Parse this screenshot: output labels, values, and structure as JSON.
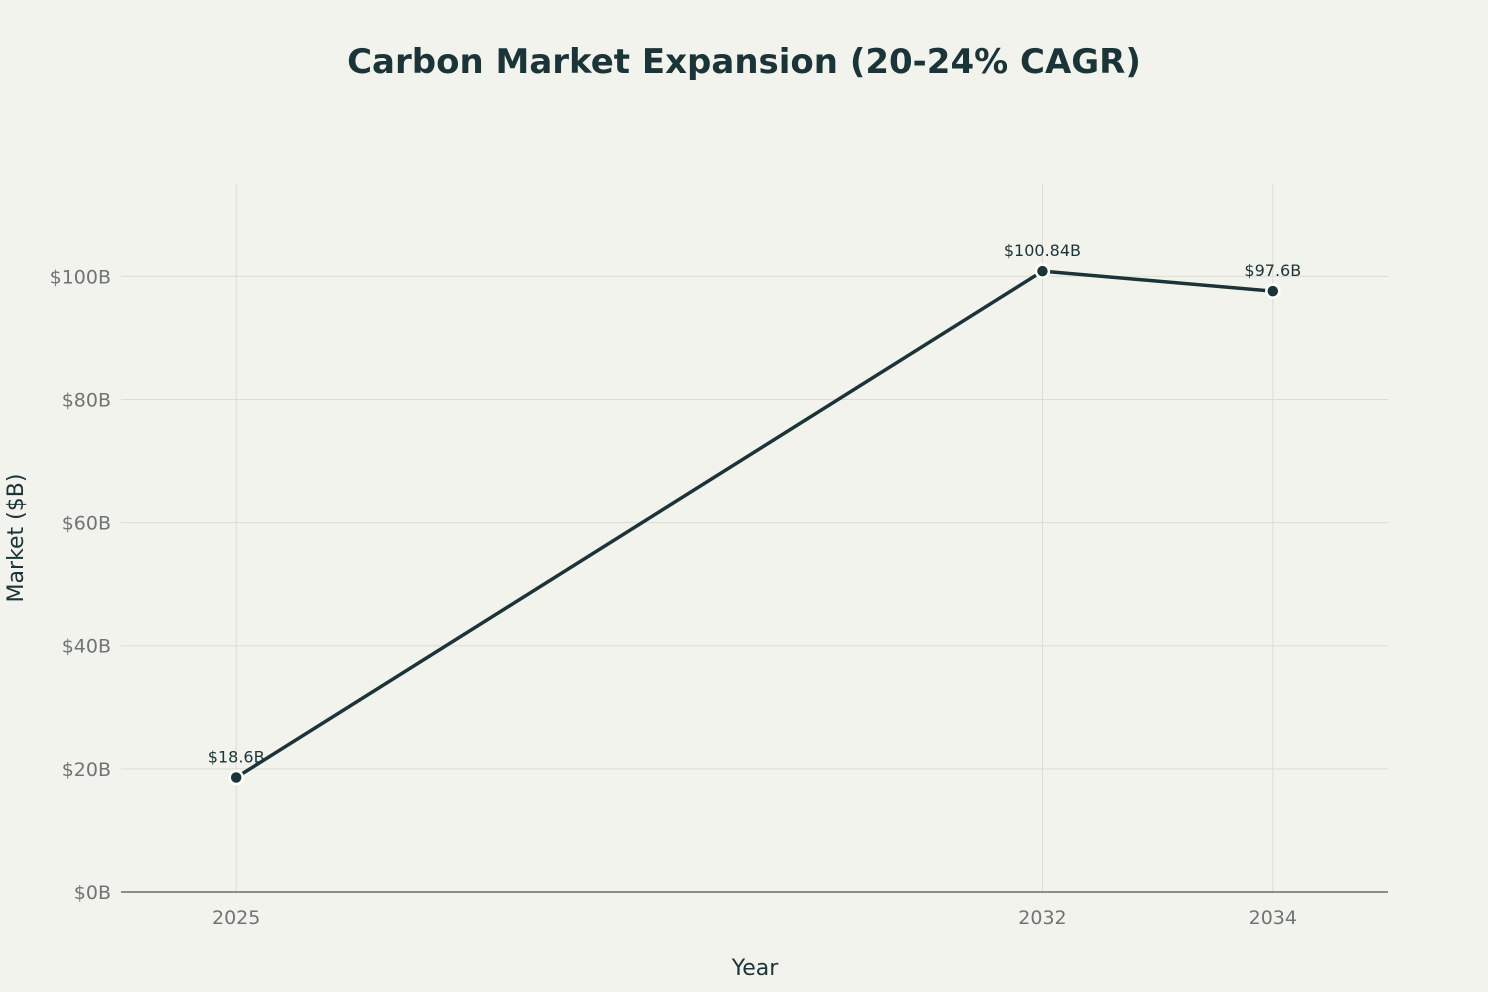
{
  "chart_data": {
    "type": "line",
    "title": "Carbon Market Expansion (20-24% CAGR)",
    "xlabel": "Year",
    "ylabel": "Market ($B)",
    "x": [
      2025,
      2032,
      2034
    ],
    "x_tick_labels": [
      "2025",
      "2032",
      "2034"
    ],
    "xlim": [
      2024,
      2035
    ],
    "ylim": [
      0,
      115
    ],
    "y_ticks": [
      0,
      20,
      40,
      60,
      80,
      100
    ],
    "y_tick_labels": [
      "$0B",
      "$20B",
      "$40B",
      "$60B",
      "$80B",
      "$100B"
    ],
    "grid": true,
    "series": [
      {
        "name": "Market",
        "values": [
          18.6,
          100.84,
          97.6
        ],
        "data_labels": [
          "$18.6B",
          "$100.84B",
          "$97.6B"
        ],
        "color": "#1a3438"
      }
    ]
  }
}
